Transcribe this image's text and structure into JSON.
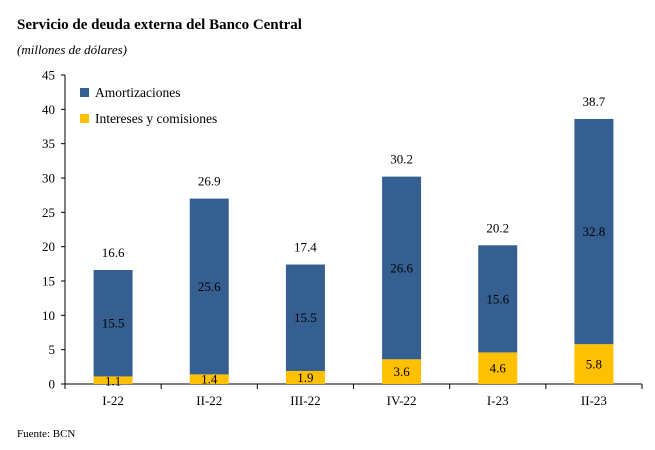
{
  "title": "Servicio de deuda externa del Banco Central",
  "subtitle": "(millones de dólares)",
  "source": "Fuente: BCN",
  "colors": {
    "amortizaciones": "#355F91",
    "intereses": "#FFC000"
  },
  "chart_data": {
    "type": "bar",
    "stacked": true,
    "categories": [
      "I-22",
      "II-22",
      "III-22",
      "IV-22",
      "I-23",
      "II-23"
    ],
    "series": [
      {
        "name": "Intereses y comisiones",
        "values": [
          1.1,
          1.4,
          1.9,
          3.6,
          4.6,
          5.8
        ]
      },
      {
        "name": "Amortizaciones",
        "values": [
          15.5,
          25.6,
          15.5,
          26.6,
          15.6,
          32.8
        ]
      }
    ],
    "totals": [
      16.6,
      26.9,
      17.4,
      30.2,
      20.2,
      38.7
    ],
    "ylim": [
      0,
      45
    ],
    "yticks": [
      0,
      5,
      10,
      15,
      20,
      25,
      30,
      35,
      40,
      45
    ],
    "legend_position": "top-left",
    "grid": false
  }
}
